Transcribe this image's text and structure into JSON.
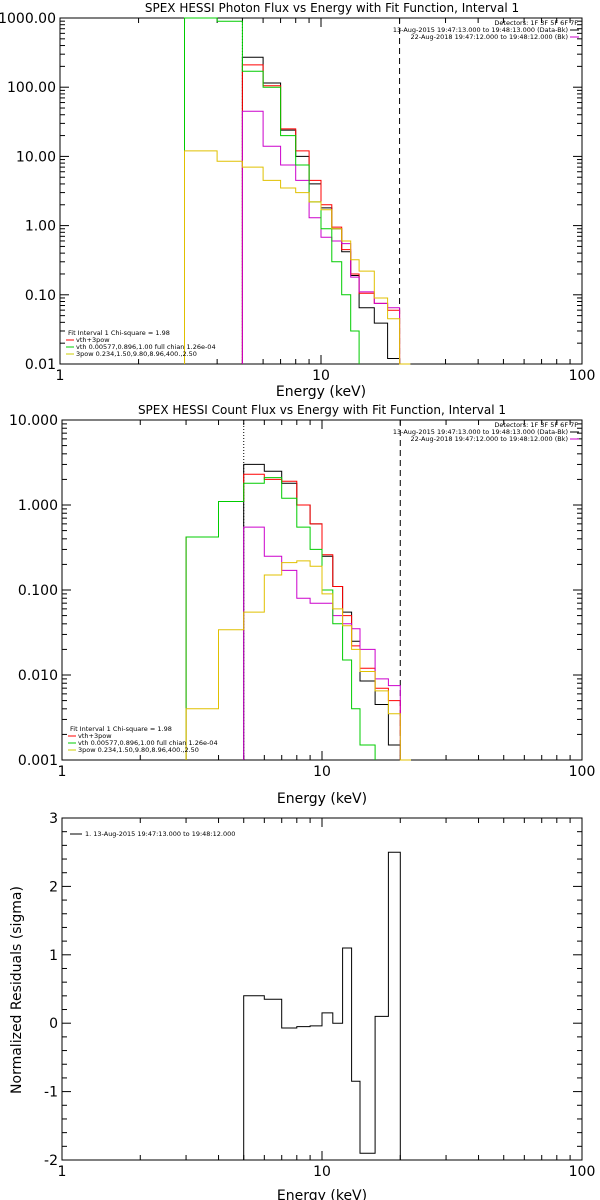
{
  "chart_data": [
    {
      "type": "line",
      "title": "SPEX HESSI Photon Flux vs Energy with Fit Function, Interval 1",
      "xlabel": "Energy (keV)",
      "ylabel": "",
      "xscale": "log",
      "yscale": "log",
      "xlim": [
        1,
        100
      ],
      "ylim": [
        0.01,
        1000
      ],
      "xticks": [
        1,
        10,
        100
      ],
      "xtick_labels": [
        "1",
        "10",
        "100"
      ],
      "yticks": [
        0.01,
        0.1,
        1,
        10,
        100,
        1000
      ],
      "ytick_labels": [
        "0.01",
        "0.10",
        "1.00",
        "10.00",
        "100.00",
        "1000.00"
      ],
      "vlines": [
        {
          "x": 5.0,
          "style": "dotted"
        },
        {
          "x": 20.0,
          "style": "dashed"
        }
      ],
      "legend_top_right": [
        {
          "text": "Detectors: 1F 3F 5F 6F 7F",
          "color": null
        },
        {
          "text": "13-Aug-2015 19:47:13.000 to 19:48:13.000 (Data-Bk)",
          "color": "#000000"
        },
        {
          "text": "22-Aug-2018 19:47:12.000 to 19:48:12.000 (Bk)",
          "color": "#cc00cc"
        }
      ],
      "legend_bottom_left": [
        {
          "text": "Fit Interval  1    Chi-square = 1.98",
          "color": null
        },
        {
          "text": "vth+3pow",
          "color": "#ff0000"
        },
        {
          "text": "vth 0.00577,0.896,1.00   full chian 1.26e-04",
          "color": "#00cc00"
        },
        {
          "text": "3pow  0.234,1.50,9.80,8.96,400.,2.50",
          "color": "#cccc00"
        }
      ],
      "series": [
        {
          "name": "Data-Bk",
          "color": "#000000",
          "edges": [
            5.0,
            6.0,
            7.0,
            8.0,
            9.0,
            10.0,
            11.0,
            12.0,
            13.0,
            14.0,
            16.0,
            18.0,
            20.0
          ],
          "values": [
            270,
            115,
            24,
            10,
            4.0,
            1.8,
            0.9,
            0.42,
            0.19,
            0.065,
            0.039,
            0.012
          ]
        },
        {
          "name": "vth+3pow",
          "color": "#ff0000",
          "edges": [
            5.0,
            6.0,
            7.0,
            8.0,
            9.0,
            10.0,
            11.0,
            12.0,
            13.0,
            14.0,
            16.0,
            18.0,
            20.0
          ],
          "values": [
            210,
            105,
            25,
            12,
            4.5,
            2.0,
            0.95,
            0.45,
            0.2,
            0.105,
            0.075,
            0.06
          ]
        },
        {
          "name": "Bk",
          "color": "#cc00cc",
          "edges": [
            5.0,
            6.0,
            7.0,
            8.0,
            9.0,
            10.0,
            11.0,
            12.0,
            13.0,
            14.0,
            16.0,
            18.0,
            20.0
          ],
          "values": [
            45,
            14,
            7.5,
            4.5,
            1.3,
            0.68,
            0.6,
            0.55,
            0.18,
            0.11,
            0.075,
            0.065
          ]
        },
        {
          "name": "vth",
          "color": "#00cc00",
          "edges": [
            3.0,
            4.0,
            5.0,
            6.0,
            7.0,
            8.0,
            9.0,
            10.0,
            11.0,
            12.0,
            13.0,
            14.0
          ],
          "values": [
            1000,
            900,
            170,
            100,
            20,
            7.5,
            2.2,
            0.9,
            0.3,
            0.1,
            0.03
          ]
        },
        {
          "name": "3pow",
          "color": "#e0c000",
          "edges": [
            3.0,
            4.0,
            5.0,
            6.0,
            7.0,
            8.0,
            9.0,
            10.0,
            11.0,
            12.0,
            13.0,
            14.0,
            16.0,
            18.0,
            20.0,
            22.0
          ],
          "values": [
            12,
            8.5,
            7.0,
            4.5,
            3.5,
            3.0,
            2.2,
            1.7,
            0.9,
            0.6,
            0.32,
            0.22,
            0.09,
            0.045,
            0.01
          ]
        }
      ]
    },
    {
      "type": "line",
      "title": "SPEX HESSI Count Flux vs Energy with Fit Function, Interval 1",
      "xlabel": "Energy (keV)",
      "ylabel": "",
      "xscale": "log",
      "yscale": "log",
      "xlim": [
        1,
        100
      ],
      "ylim": [
        0.001,
        10
      ],
      "xticks": [
        1,
        10,
        100
      ],
      "xtick_labels": [
        "1",
        "10",
        "100"
      ],
      "yticks": [
        0.001,
        0.01,
        0.1,
        1,
        10
      ],
      "ytick_labels": [
        "0.001",
        "0.010",
        "0.100",
        "1.000",
        "10.000"
      ],
      "vlines": [
        {
          "x": 5.0,
          "style": "dotted"
        },
        {
          "x": 20.0,
          "style": "dashed"
        }
      ],
      "legend_top_right": [
        {
          "text": "Detectors: 1F 3F 5F 6F 7F",
          "color": null
        },
        {
          "text": "13-Aug-2015 19:47:13.000 to 19:48:13.000 (Data-Bk)",
          "color": "#000000"
        },
        {
          "text": "22-Aug-2018 19:47:12.000 to 19:48:12.000 (Bk)",
          "color": "#cc00cc"
        }
      ],
      "legend_bottom_left": [
        {
          "text": "Fit Interval  1    Chi-square = 1.98",
          "color": null
        },
        {
          "text": "vth+3pow",
          "color": "#ff0000"
        },
        {
          "text": "vth 0.00577,0.896,1.00   full chian 1.26e-04",
          "color": "#00cc00"
        },
        {
          "text": "3pow  0.234,1.50,9.80,8.96,400.,2.50",
          "color": "#cccc00"
        }
      ],
      "series": [
        {
          "name": "Data-Bk",
          "color": "#000000",
          "edges": [
            5.0,
            6.0,
            7.0,
            8.0,
            9.0,
            10.0,
            11.0,
            12.0,
            13.0,
            14.0,
            16.0,
            18.0,
            20.0
          ],
          "values": [
            3.0,
            2.5,
            1.8,
            1.0,
            0.6,
            0.25,
            0.11,
            0.055,
            0.025,
            0.0085,
            0.0045,
            0.0015
          ]
        },
        {
          "name": "vth+3pow",
          "color": "#ff0000",
          "edges": [
            3.0,
            4.0,
            5.0,
            6.0,
            7.0,
            8.0,
            9.0,
            10.0,
            11.0,
            12.0,
            13.0,
            14.0,
            16.0,
            18.0,
            20.0
          ],
          "values": [
            0.42,
            1.1,
            2.3,
            2.0,
            1.9,
            1.0,
            0.6,
            0.26,
            0.11,
            0.05,
            0.022,
            0.012,
            0.007,
            0.005,
            0.002
          ]
        },
        {
          "name": "Bk",
          "color": "#cc00cc",
          "edges": [
            5.0,
            6.0,
            7.0,
            8.0,
            9.0,
            10.0,
            11.0,
            12.0,
            13.0,
            14.0,
            16.0,
            18.0,
            20.0
          ],
          "values": [
            0.55,
            0.25,
            0.17,
            0.08,
            0.07,
            0.07,
            0.05,
            0.04,
            0.035,
            0.02,
            0.009,
            0.0075
          ]
        },
        {
          "name": "vth",
          "color": "#00cc00",
          "edges": [
            3.0,
            4.0,
            5.0,
            6.0,
            7.0,
            8.0,
            9.0,
            10.0,
            11.0,
            12.0,
            13.0,
            14.0,
            16.0
          ],
          "values": [
            0.42,
            1.1,
            1.8,
            2.1,
            1.2,
            0.55,
            0.3,
            0.1,
            0.04,
            0.015,
            0.004,
            0.0015
          ]
        },
        {
          "name": "3pow",
          "color": "#e0c000",
          "edges": [
            3.0,
            4.0,
            5.0,
            6.0,
            7.0,
            8.0,
            9.0,
            10.0,
            11.0,
            12.0,
            13.0,
            14.0,
            16.0,
            18.0,
            20.0,
            22.0
          ],
          "values": [
            0.004,
            0.034,
            0.055,
            0.15,
            0.21,
            0.22,
            0.19,
            0.09,
            0.06,
            0.038,
            0.02,
            0.011,
            0.0065,
            0.0035,
            0.001
          ]
        }
      ]
    },
    {
      "type": "line",
      "title": "",
      "xlabel": "Energy (keV)",
      "ylabel": "Normalized Residuals (sigma)",
      "xscale": "log",
      "yscale": "linear",
      "xlim": [
        1,
        100
      ],
      "ylim": [
        -2,
        3
      ],
      "xticks": [
        1,
        10,
        100
      ],
      "xtick_labels": [
        "1",
        "10",
        "100"
      ],
      "yticks": [
        -2,
        -1,
        0,
        1,
        2,
        3
      ],
      "ytick_labels": [
        "-2",
        "-1",
        "0",
        "1",
        "2",
        "3"
      ],
      "legend_top_left": [
        {
          "text": "1. 13-Aug-2015 19:47:13.000 to 19:48:12.000",
          "color": "#000000"
        }
      ],
      "series": [
        {
          "name": "1. 13-Aug-2015 19:47:13.000 to 19:48:12.000",
          "color": "#000000",
          "edges": [
            5.0,
            6.0,
            7.0,
            8.0,
            9.0,
            10.0,
            11.0,
            12.0,
            13.0,
            14.0,
            16.0,
            18.0,
            20.0
          ],
          "values": [
            0.4,
            0.35,
            -0.07,
            -0.05,
            -0.04,
            0.15,
            0.0,
            1.1,
            -0.85,
            -1.9,
            0.1,
            2.5
          ]
        }
      ]
    }
  ]
}
